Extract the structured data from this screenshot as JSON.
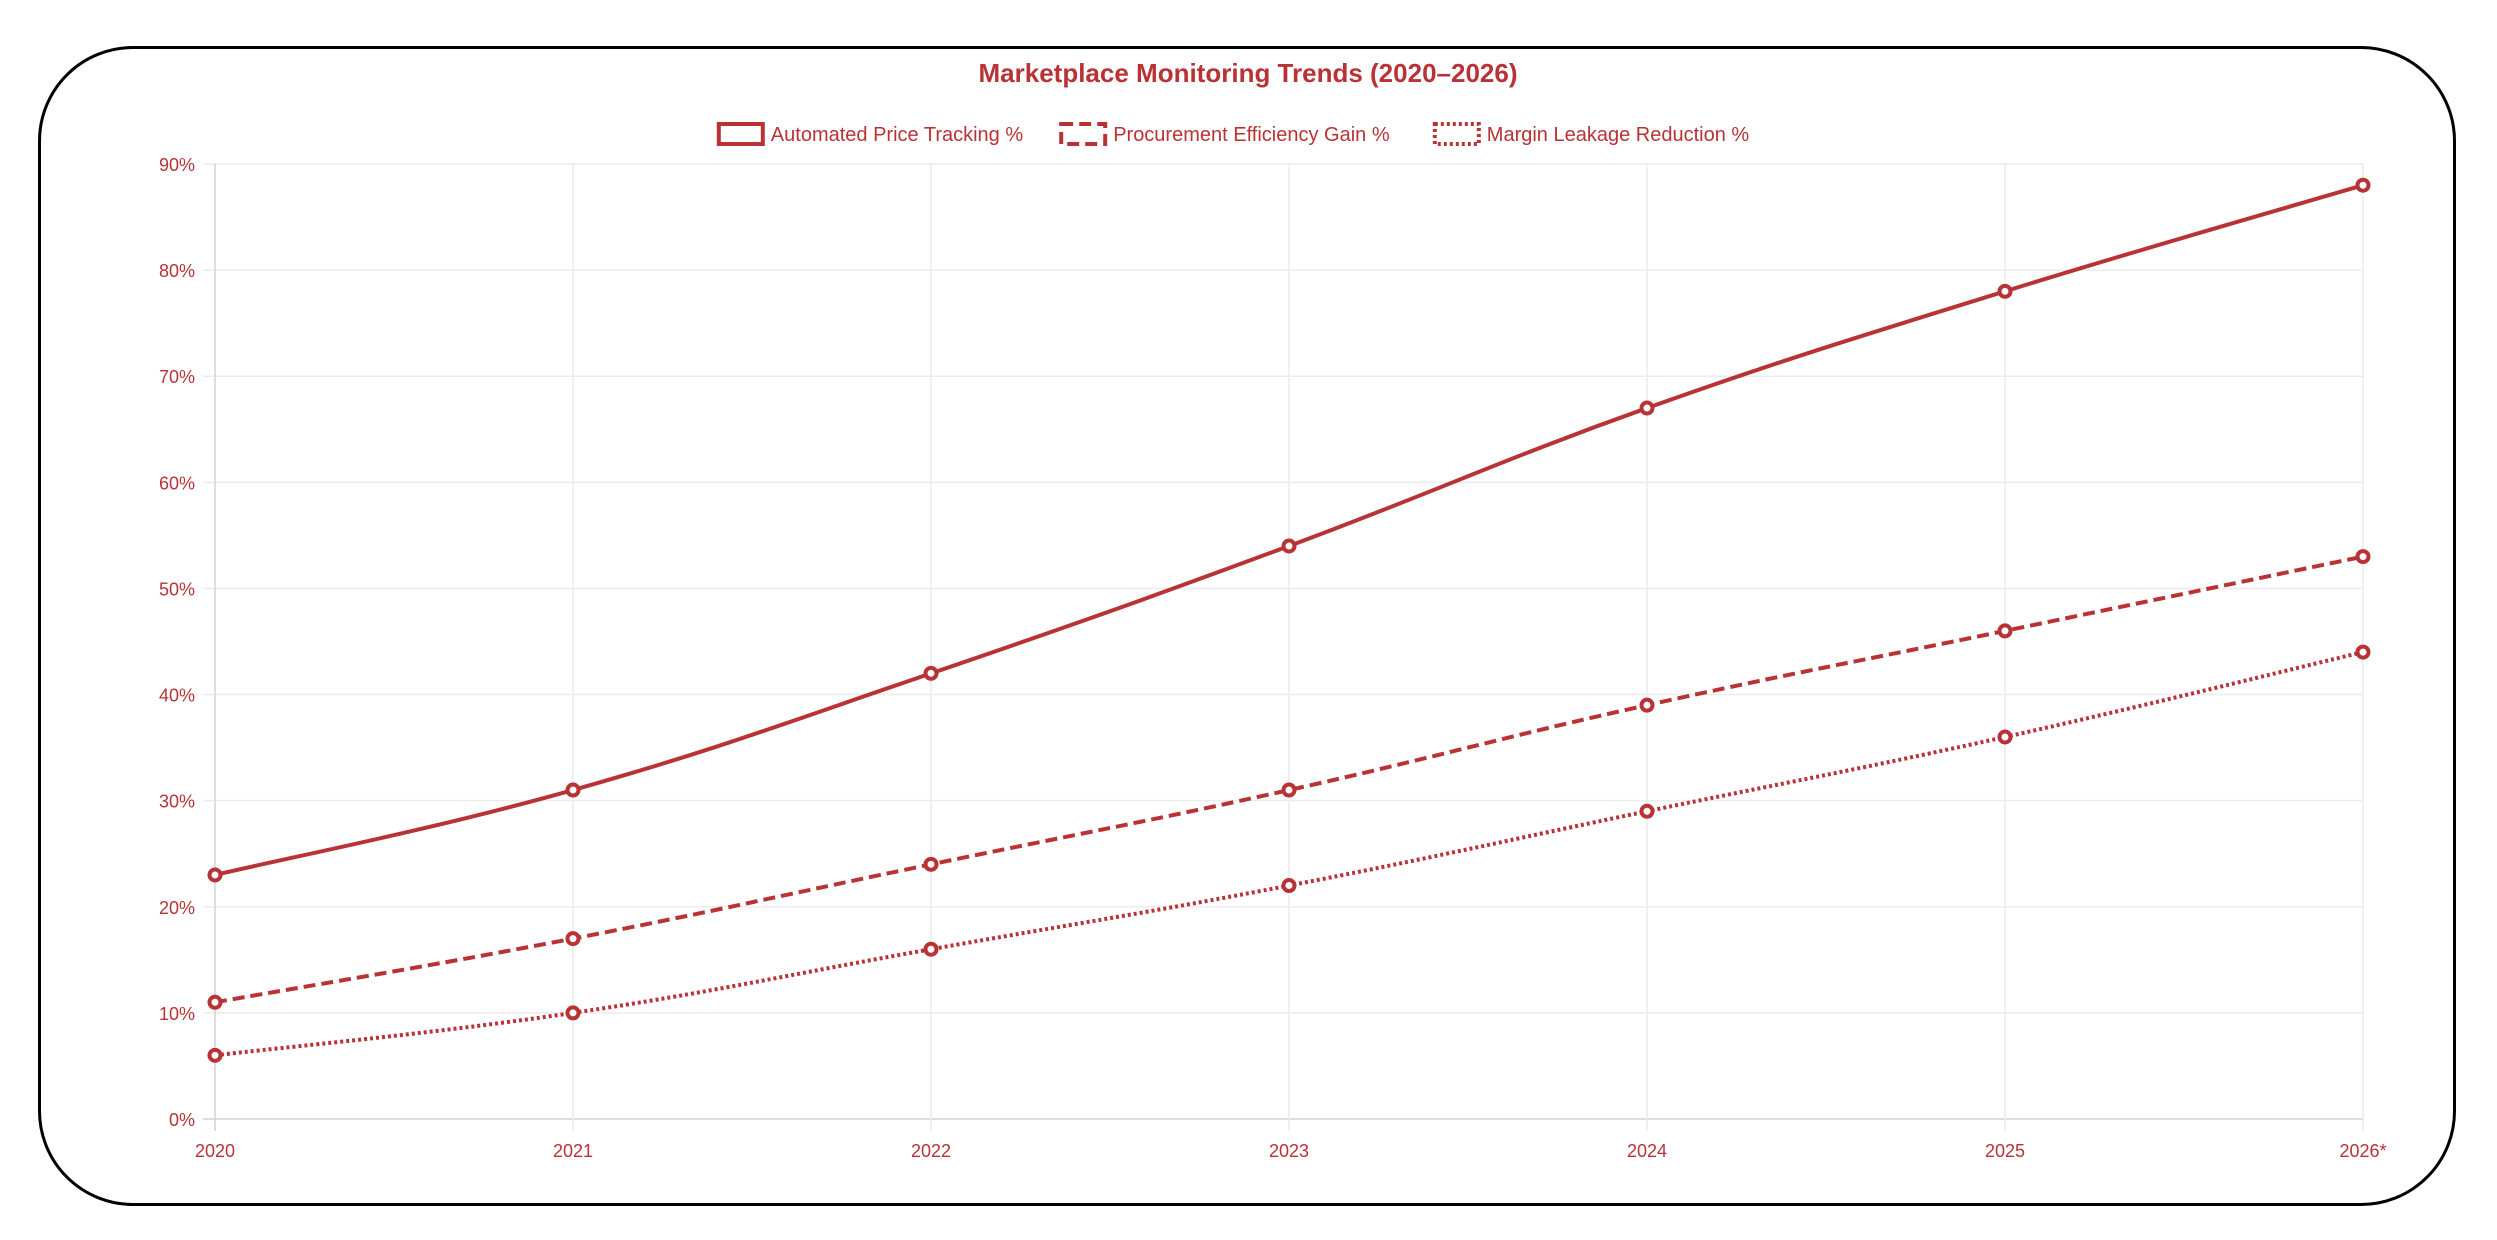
{
  "chart_data": {
    "type": "line",
    "title": "Marketplace Monitoring Trends (2020–2026)",
    "categories": [
      "2020",
      "2021",
      "2022",
      "2023",
      "2024",
      "2025",
      "2026*"
    ],
    "ylim": [
      0,
      90
    ],
    "yticks": [
      0,
      10,
      20,
      30,
      40,
      50,
      60,
      70,
      80,
      90
    ],
    "ytick_format": "{v}%",
    "grid": true,
    "legend_placement": "top",
    "color": "#b83236",
    "series": [
      {
        "name": "Automated Price Tracking %",
        "style": "solid",
        "values": [
          23,
          31,
          42,
          54,
          67,
          78,
          88
        ]
      },
      {
        "name": "Procurement Efficiency Gain %",
        "style": "dashed",
        "values": [
          11,
          17,
          24,
          31,
          39,
          46,
          53
        ]
      },
      {
        "name": "Margin Leakage Reduction %",
        "style": "dotted",
        "values": [
          6,
          10,
          16,
          22,
          29,
          36,
          44
        ]
      }
    ]
  }
}
